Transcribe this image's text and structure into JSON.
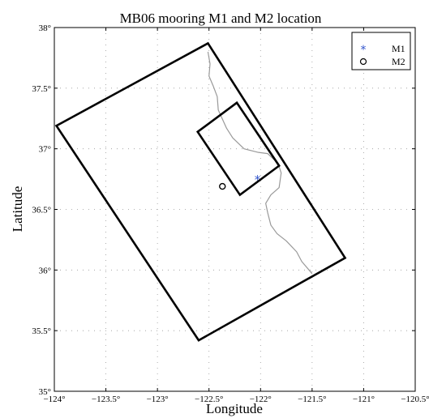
{
  "chart_data": {
    "type": "scatter",
    "title": "MB06 mooring M1 and M2 location",
    "xlabel": "Longitude",
    "ylabel": "Latitude",
    "xlim": [
      -124,
      -120.5
    ],
    "ylim": [
      35,
      38
    ],
    "grid": true,
    "legend_position": "top-right",
    "x_ticks": [
      -124,
      -123.5,
      -123,
      -122.5,
      -122,
      -121.5,
      -121,
      -120.5
    ],
    "y_ticks": [
      35,
      35.5,
      36,
      36.5,
      37,
      37.5,
      38
    ],
    "x_tick_labels": [
      "−124°",
      "−123.5°",
      "−123°",
      "−122.5°",
      "−122°",
      "−121.5°",
      "−121°",
      "−120.5°"
    ],
    "y_tick_labels": [
      "35°",
      "35.5°",
      "36°",
      "36.5°",
      "37°",
      "37.5°",
      "38°"
    ],
    "series": [
      {
        "name": "M1",
        "marker": "asterisk",
        "color": "#3355cc",
        "points": [
          [
            -122.03,
            36.75
          ]
        ]
      },
      {
        "name": "M2",
        "marker": "circle",
        "color": "#000000",
        "points": [
          [
            -122.37,
            36.69
          ]
        ]
      }
    ],
    "domains": [
      {
        "outline": [
          [
            -123.98,
            37.19
          ],
          [
            -122.51,
            37.87
          ],
          [
            -121.18,
            36.1
          ],
          [
            -122.6,
            35.42
          ]
        ]
      },
      {
        "outline": [
          [
            -122.61,
            37.14
          ],
          [
            -122.23,
            37.38
          ],
          [
            -121.82,
            36.86
          ],
          [
            -122.2,
            36.62
          ]
        ]
      }
    ],
    "coastline": [
      [
        -122.51,
        37.8
      ],
      [
        -122.49,
        37.7
      ],
      [
        -122.5,
        37.6
      ],
      [
        -122.46,
        37.52
      ],
      [
        -122.42,
        37.43
      ],
      [
        -122.41,
        37.32
      ],
      [
        -122.33,
        37.17
      ],
      [
        -122.27,
        37.09
      ],
      [
        -122.16,
        37.0
      ],
      [
        -122.02,
        36.97
      ],
      [
        -121.93,
        36.96
      ],
      [
        -121.83,
        36.88
      ],
      [
        -121.8,
        36.8
      ],
      [
        -121.82,
        36.68
      ],
      [
        -121.9,
        36.62
      ],
      [
        -121.95,
        36.55
      ],
      [
        -121.93,
        36.47
      ],
      [
        -121.9,
        36.37
      ],
      [
        -121.84,
        36.3
      ],
      [
        -121.75,
        36.24
      ],
      [
        -121.65,
        36.15
      ],
      [
        -121.6,
        36.07
      ],
      [
        -121.5,
        35.97
      ]
    ],
    "colors": {
      "coastline": "#999999",
      "grid": "#999999",
      "outline": "#000000"
    }
  }
}
